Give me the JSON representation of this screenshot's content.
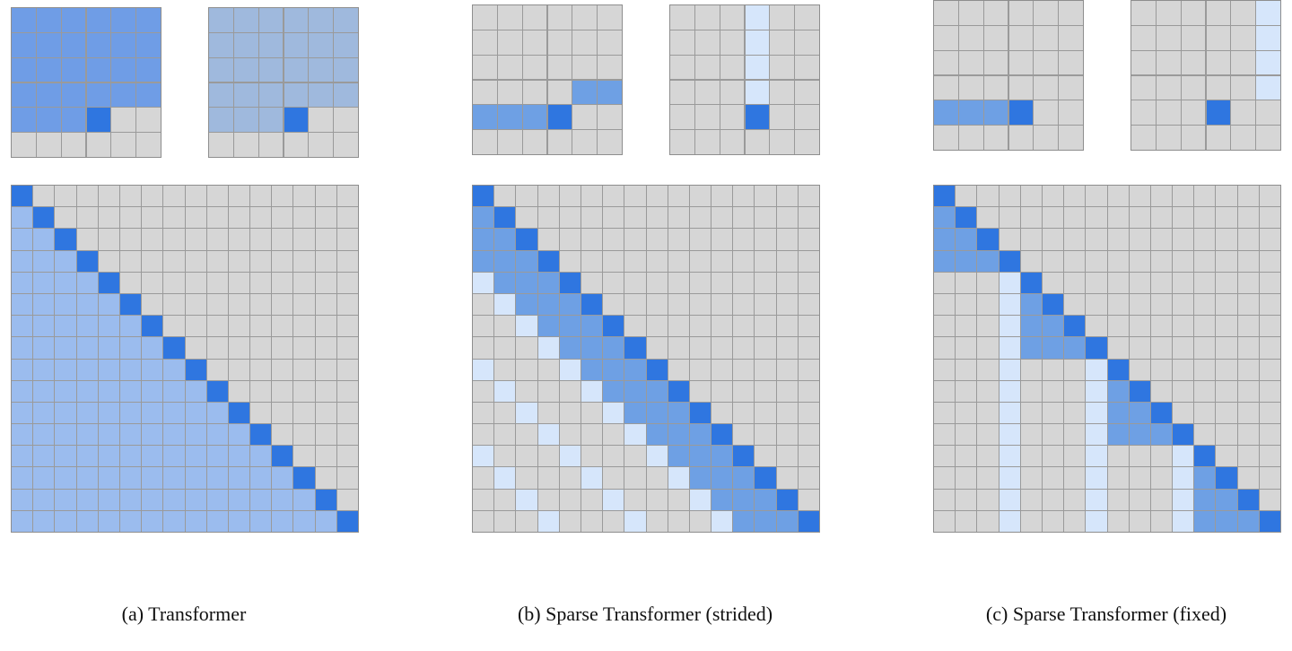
{
  "colors": {
    "empty": "#d6d6d6",
    "current": "#2f76e0",
    "full_attention": "#9bbcee",
    "full_small_a": "#6f9de6",
    "full_small_b": "#9fb9dd",
    "local": "#6ea0e4",
    "summary": "#d6e6fb"
  },
  "panels": [
    {
      "id": "a",
      "caption": "(a) Transformer",
      "small_left": {
        "rows": 6,
        "cols": 6,
        "cells": [
          {
            "r": 0,
            "c": 0,
            "w": 6,
            "color": "full_small_a"
          },
          {
            "r": 1,
            "c": 0,
            "w": 6,
            "color": "full_small_a"
          },
          {
            "r": 2,
            "c": 0,
            "w": 6,
            "color": "full_small_a"
          },
          {
            "r": 3,
            "c": 0,
            "w": 6,
            "color": "full_small_a"
          },
          {
            "r": 4,
            "c": 0,
            "w": 3,
            "color": "full_small_a"
          },
          {
            "r": 4,
            "c": 3,
            "w": 1,
            "color": "current"
          }
        ]
      },
      "small_right": {
        "rows": 6,
        "cols": 6,
        "cells": [
          {
            "r": 0,
            "c": 0,
            "w": 6,
            "color": "full_small_b"
          },
          {
            "r": 1,
            "c": 0,
            "w": 6,
            "color": "full_small_b"
          },
          {
            "r": 2,
            "c": 0,
            "w": 6,
            "color": "full_small_b"
          },
          {
            "r": 3,
            "c": 0,
            "w": 6,
            "color": "full_small_b"
          },
          {
            "r": 4,
            "c": 0,
            "w": 3,
            "color": "full_small_b"
          },
          {
            "r": 4,
            "c": 3,
            "w": 1,
            "color": "current"
          }
        ]
      },
      "matrix": {
        "size": 16,
        "pattern": "full"
      }
    },
    {
      "id": "b",
      "caption": "(b) Sparse Transformer (strided)",
      "small_left": {
        "rows": 6,
        "cols": 6,
        "cells": [
          {
            "r": 3,
            "c": 4,
            "w": 2,
            "color": "local"
          },
          {
            "r": 4,
            "c": 0,
            "w": 3,
            "color": "local"
          },
          {
            "r": 4,
            "c": 3,
            "w": 1,
            "color": "current"
          }
        ]
      },
      "small_right": {
        "rows": 6,
        "cols": 6,
        "cells": [
          {
            "r": 0,
            "c": 3,
            "w": 1,
            "color": "summary"
          },
          {
            "r": 1,
            "c": 3,
            "w": 1,
            "color": "summary"
          },
          {
            "r": 2,
            "c": 3,
            "w": 1,
            "color": "summary"
          },
          {
            "r": 3,
            "c": 3,
            "w": 1,
            "color": "summary"
          },
          {
            "r": 4,
            "c": 3,
            "w": 1,
            "color": "current"
          }
        ]
      },
      "matrix": {
        "size": 16,
        "pattern": "strided",
        "stride": 4
      }
    },
    {
      "id": "c",
      "caption": "(c) Sparse Transformer (fixed)",
      "small_left": {
        "rows": 6,
        "cols": 6,
        "cells": [
          {
            "r": 4,
            "c": 0,
            "w": 3,
            "color": "local"
          },
          {
            "r": 4,
            "c": 3,
            "w": 1,
            "color": "current"
          }
        ]
      },
      "small_right": {
        "rows": 6,
        "cols": 6,
        "cells": [
          {
            "r": 0,
            "c": 5,
            "w": 1,
            "color": "summary"
          },
          {
            "r": 1,
            "c": 5,
            "w": 1,
            "color": "summary"
          },
          {
            "r": 2,
            "c": 5,
            "w": 1,
            "color": "summary"
          },
          {
            "r": 3,
            "c": 5,
            "w": 1,
            "color": "summary"
          },
          {
            "r": 4,
            "c": 3,
            "w": 1,
            "color": "current"
          }
        ]
      },
      "matrix": {
        "size": 16,
        "pattern": "fixed",
        "block": 4
      }
    }
  ]
}
